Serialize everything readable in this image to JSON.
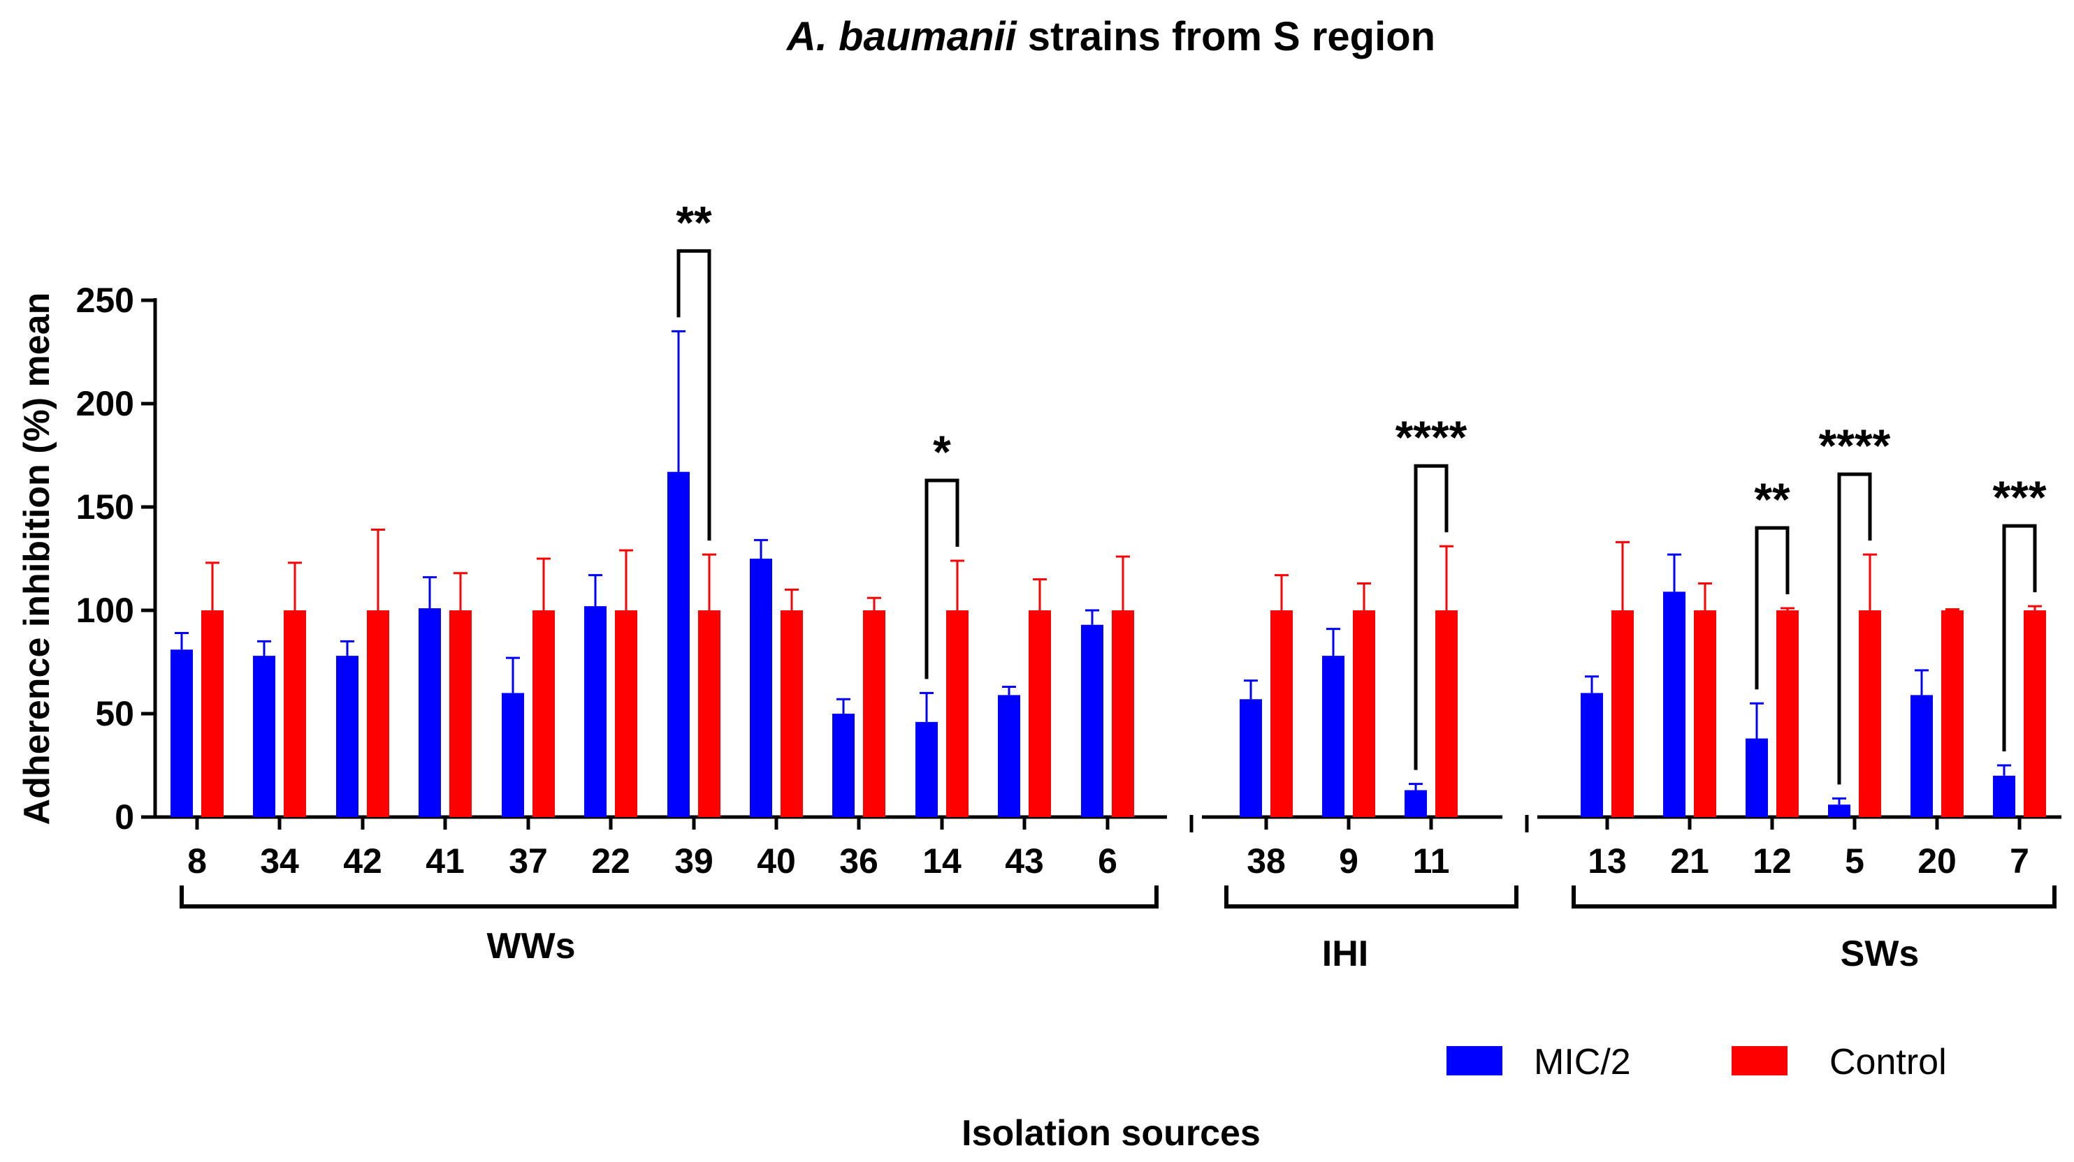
{
  "chart_data": {
    "type": "bar",
    "title_italic": "A. baumanii",
    "title_rest": " strains from S region",
    "xlabel": "Isolation sources",
    "ylabel": "Adherence inhibition (%) mean",
    "ylim": [
      0,
      250
    ],
    "yticks": [
      0,
      50,
      100,
      150,
      200,
      250
    ],
    "ytick_labels": [
      "0",
      "50",
      "100",
      "150",
      "200",
      "250"
    ],
    "series_colors": {
      "MIC/2": "#0000ff",
      "Control": "#ff0000"
    },
    "legend": [
      {
        "name": "MIC/2",
        "color": "#0000ff"
      },
      {
        "name": "Control",
        "color": "#ff0000"
      }
    ],
    "groups": [
      {
        "label": "WWs",
        "categories": [
          "8",
          "34",
          "42",
          "41",
          "37",
          "22",
          "39",
          "40",
          "36",
          "14",
          "43",
          "6"
        ],
        "mic2": [
          81,
          78,
          78,
          101,
          60,
          102,
          167,
          125,
          50,
          46,
          59,
          93
        ],
        "mic2_err": [
          8,
          7,
          7,
          15,
          17,
          15,
          68,
          9,
          7,
          14,
          4,
          7
        ],
        "control": [
          100,
          100,
          100,
          100,
          100,
          100,
          100,
          100,
          100,
          100,
          100,
          100
        ],
        "control_err": [
          23,
          23,
          39,
          18,
          25,
          29,
          27,
          10,
          6,
          24,
          15,
          26
        ]
      },
      {
        "label": "IHI",
        "categories": [
          "38",
          "9",
          "11"
        ],
        "mic2": [
          57,
          78,
          13
        ],
        "mic2_err": [
          9,
          13,
          3
        ],
        "control": [
          100,
          100,
          100
        ],
        "control_err": [
          17,
          13,
          31
        ]
      },
      {
        "label": "SWs",
        "categories": [
          "13",
          "21",
          "12",
          "5",
          "20",
          "7"
        ],
        "mic2": [
          60,
          109,
          38,
          6,
          59,
          20
        ],
        "mic2_err": [
          8,
          18,
          17,
          3,
          12,
          5
        ],
        "control": [
          100,
          100,
          100,
          100,
          100,
          100
        ],
        "control_err": [
          33,
          13,
          1,
          27,
          0.5,
          2
        ]
      }
    ],
    "significance": [
      {
        "group": 0,
        "index": 6,
        "label": "**"
      },
      {
        "group": 0,
        "index": 9,
        "label": "*"
      },
      {
        "group": 1,
        "index": 2,
        "label": "****"
      },
      {
        "group": 2,
        "index": 2,
        "label": "**"
      },
      {
        "group": 2,
        "index": 3,
        "label": "****"
      },
      {
        "group": 2,
        "index": 5,
        "label": "***"
      }
    ]
  }
}
